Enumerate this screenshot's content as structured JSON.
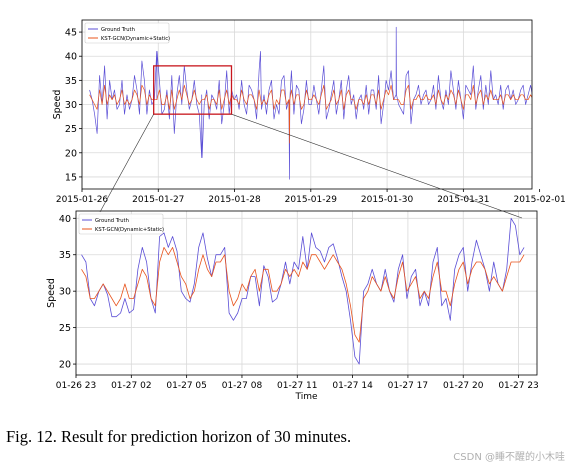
{
  "caption": "Fig. 12.   Result for prediction horizon of 30 minutes.",
  "watermark": "CSDN @睡不醒的小木哇",
  "chart_data": [
    {
      "type": "line",
      "title": "",
      "xlabel": "",
      "ylabel": "Speed",
      "x_range": [
        0,
        5.9
      ],
      "ylim": [
        12.5,
        47.5
      ],
      "xticks": [
        {
          "v": 0.0,
          "label": "2015-01-26"
        },
        {
          "v": 1.0,
          "label": "2015-01-27"
        },
        {
          "v": 2.0,
          "label": "2015-01-28"
        },
        {
          "v": 3.0,
          "label": "2015-01-29"
        },
        {
          "v": 4.0,
          "label": "2015-01-30"
        },
        {
          "v": 5.0,
          "label": "2015-01-31"
        },
        {
          "v": 6.0,
          "label": "2015-02-01"
        }
      ],
      "yticks": [
        15,
        20,
        25,
        30,
        35,
        40,
        45
      ],
      "grid": true,
      "legend": "upper-left",
      "zoom_box": {
        "x": [
          0.94,
          1.96
        ],
        "y": [
          28,
          38
        ]
      },
      "series": [
        {
          "name": "Ground Truth",
          "color": "#5b4fd6",
          "x_range": [
            0.1,
            5.98
          ],
          "values": [
            33,
            31,
            28,
            24,
            36,
            30,
            38,
            27,
            35,
            31,
            33,
            29,
            30,
            35,
            28,
            32,
            29,
            31,
            36,
            33,
            28,
            39,
            35,
            28,
            33,
            30,
            31,
            31,
            35,
            28,
            29,
            33,
            27,
            36,
            24,
            32,
            36,
            30,
            38,
            33,
            29,
            31,
            35,
            30,
            28,
            32,
            30,
            33,
            27,
            32,
            31,
            29,
            35,
            26,
            30,
            37,
            28,
            33,
            31,
            32,
            29,
            35,
            30,
            28,
            34,
            33,
            31,
            27,
            37,
            29,
            32,
            28,
            33,
            35,
            27,
            30,
            28,
            35,
            36,
            29,
            31,
            37,
            28,
            34,
            33,
            26,
            29,
            35,
            30,
            30,
            34,
            31,
            28,
            33,
            38,
            27,
            29,
            32,
            35,
            28,
            31,
            35,
            27,
            33,
            36,
            30,
            32,
            27,
            31,
            32,
            29,
            34,
            28,
            33,
            33,
            29,
            36,
            26,
            30,
            35,
            33,
            37,
            31,
            32,
            30,
            29,
            28,
            36,
            37,
            26,
            31,
            32,
            34,
            30,
            32,
            33,
            30,
            31,
            34,
            29,
            36,
            31,
            29,
            33,
            30,
            37,
            33,
            29,
            35,
            31,
            27,
            34,
            33,
            32,
            38,
            29,
            33,
            36,
            29,
            34,
            30,
            37,
            31,
            32,
            30,
            34,
            29,
            33,
            34,
            31,
            33,
            30,
            31,
            33,
            34,
            30,
            32,
            34,
            31,
            35,
            29
          ]
        },
        {
          "name": "KST-GCN(Dynamic+Static)",
          "color": "#e8541e",
          "x_range": [
            0.1,
            5.98
          ],
          "values": [
            32,
            31,
            30,
            29,
            33,
            30,
            34,
            30,
            32,
            31,
            32,
            30,
            31,
            33,
            30,
            31,
            30,
            31,
            33,
            32,
            30,
            34,
            33,
            30,
            32,
            31,
            31,
            31,
            33,
            30,
            30,
            32,
            29,
            33,
            29,
            31,
            33,
            31,
            34,
            32,
            30,
            31,
            33,
            31,
            30,
            31,
            31,
            32,
            29,
            31,
            31,
            30,
            33,
            29,
            31,
            33,
            30,
            32,
            31,
            31,
            30,
            33,
            31,
            30,
            32,
            32,
            31,
            29,
            33,
            30,
            31,
            30,
            32,
            33,
            29,
            31,
            30,
            33,
            33,
            30,
            31,
            33,
            30,
            32,
            32,
            29,
            30,
            33,
            31,
            31,
            32,
            31,
            30,
            32,
            34,
            29,
            30,
            31,
            33,
            30,
            31,
            33,
            29,
            32,
            33,
            31,
            31,
            29,
            31,
            31,
            30,
            32,
            30,
            32,
            32,
            30,
            33,
            29,
            31,
            33,
            32,
            34,
            31,
            31,
            31,
            30,
            30,
            33,
            34,
            29,
            31,
            31,
            32,
            31,
            31,
            32,
            31,
            31,
            32,
            30,
            33,
            31,
            30,
            32,
            31,
            33,
            32,
            30,
            33,
            31,
            29,
            32,
            32,
            31,
            34,
            30,
            32,
            33,
            30,
            32,
            31,
            33,
            31,
            31,
            31,
            32,
            30,
            32,
            32,
            31,
            32,
            31,
            31,
            32,
            32,
            31,
            31,
            32,
            31,
            33,
            30
          ]
        }
      ],
      "spikes": [
        {
          "series": "Ground Truth",
          "x": 1.57,
          "y": 19
        },
        {
          "series": "Ground Truth",
          "x": 2.72,
          "y": 14.5
        },
        {
          "series": "KST-GCN(Dynamic+Static)",
          "x": 2.72,
          "y": 22
        },
        {
          "series": "Ground Truth",
          "x": 4.12,
          "y": 46
        },
        {
          "series": "Ground Truth",
          "x": 0.98,
          "y": 41
        },
        {
          "series": "Ground Truth",
          "x": 2.34,
          "y": 41
        }
      ]
    },
    {
      "type": "line",
      "title": "",
      "xlabel": "Time",
      "ylabel": "Speed",
      "x_range": [
        0,
        25
      ],
      "ylim": [
        18.5,
        41
      ],
      "xticks": [
        {
          "v": 0,
          "label": "01-26 23"
        },
        {
          "v": 3,
          "label": "01-27 02"
        },
        {
          "v": 6,
          "label": "01-27 05"
        },
        {
          "v": 9,
          "label": "01-27 08"
        },
        {
          "v": 12,
          "label": "01-27 11"
        },
        {
          "v": 15,
          "label": "01-27 14"
        },
        {
          "v": 18,
          "label": "01-27 17"
        },
        {
          "v": 21,
          "label": "01-27 20"
        },
        {
          "v": 24,
          "label": "01-27 23"
        }
      ],
      "yticks": [
        20,
        25,
        30,
        35,
        40
      ],
      "grid": true,
      "legend": "upper-left",
      "series": [
        {
          "name": "Ground Truth",
          "color": "#5b4fd6",
          "x_range": [
            0.3,
            24.3
          ],
          "values": [
            35,
            34,
            29,
            28,
            30,
            31,
            29.5,
            26.5,
            26.5,
            27,
            29,
            27,
            27.5,
            33,
            36,
            34,
            29,
            27,
            37.5,
            38,
            36,
            37.5,
            35.5,
            30,
            29,
            28.5,
            31,
            36,
            38,
            34.5,
            32,
            35,
            35,
            36,
            27,
            26,
            27,
            29,
            29,
            32,
            32,
            28,
            33.5,
            32,
            28.5,
            29,
            31,
            34,
            31,
            34,
            33,
            37.5,
            33,
            38,
            36,
            35.5,
            34,
            36,
            36.5,
            34.5,
            32,
            30,
            26,
            21,
            20,
            30,
            31,
            33,
            31,
            30,
            33,
            30,
            28.5,
            33,
            35,
            29,
            32,
            33,
            28,
            30,
            28,
            34,
            36,
            28,
            29,
            26,
            33,
            35,
            36,
            30,
            34,
            37,
            35,
            33,
            30,
            34,
            31,
            30,
            33,
            40,
            39,
            35,
            36
          ]
        },
        {
          "name": "KST-GCN(Dynamic+Static)",
          "color": "#e8541e",
          "x_range": [
            0.3,
            24.3
          ],
          "values": [
            33,
            32,
            29,
            29,
            30,
            31,
            30,
            29,
            28,
            29,
            31,
            29,
            29,
            31,
            33,
            32,
            29,
            28,
            34,
            36,
            35,
            36,
            34,
            32,
            31,
            29,
            30,
            33,
            35,
            33,
            32,
            34,
            34,
            35,
            30,
            28,
            29,
            31,
            30,
            32,
            33,
            30,
            33,
            33,
            30,
            30,
            31,
            33,
            32,
            33,
            32,
            34,
            33,
            35,
            35,
            34,
            33,
            34,
            35,
            34,
            33,
            31,
            28,
            24,
            23,
            29,
            30,
            32,
            31,
            30,
            32,
            30,
            29,
            32,
            34,
            30,
            31,
            32,
            29,
            30,
            29,
            32,
            34,
            30,
            30,
            28,
            31,
            33,
            34,
            31,
            33,
            34,
            34,
            33,
            31,
            32,
            31,
            30,
            32,
            34,
            34,
            34,
            35
          ]
        }
      ]
    }
  ]
}
